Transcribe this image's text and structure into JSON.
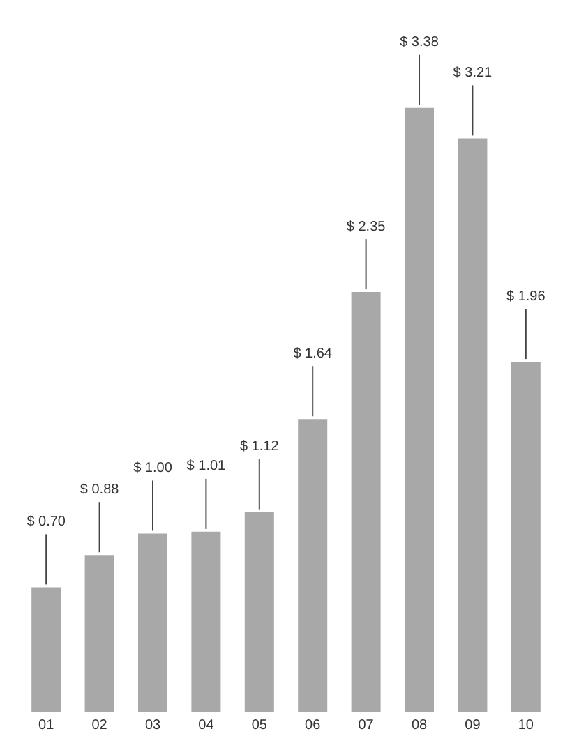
{
  "chart_data": {
    "type": "bar",
    "categories": [
      "01",
      "02",
      "03",
      "04",
      "05",
      "06",
      "07",
      "08",
      "09",
      "10"
    ],
    "values": [
      0.7,
      0.88,
      1.0,
      1.01,
      1.12,
      1.64,
      2.35,
      3.38,
      3.21,
      1.96
    ],
    "value_labels": [
      "$ 0.70",
      "$ 0.88",
      "$ 1.00",
      "$ 1.01",
      "$ 1.12",
      "$ 1.64",
      "$ 2.35",
      "$ 3.38",
      "$ 3.21",
      "$ 1.96"
    ],
    "color": "#a8a8a8",
    "grid": false,
    "legend": false
  }
}
